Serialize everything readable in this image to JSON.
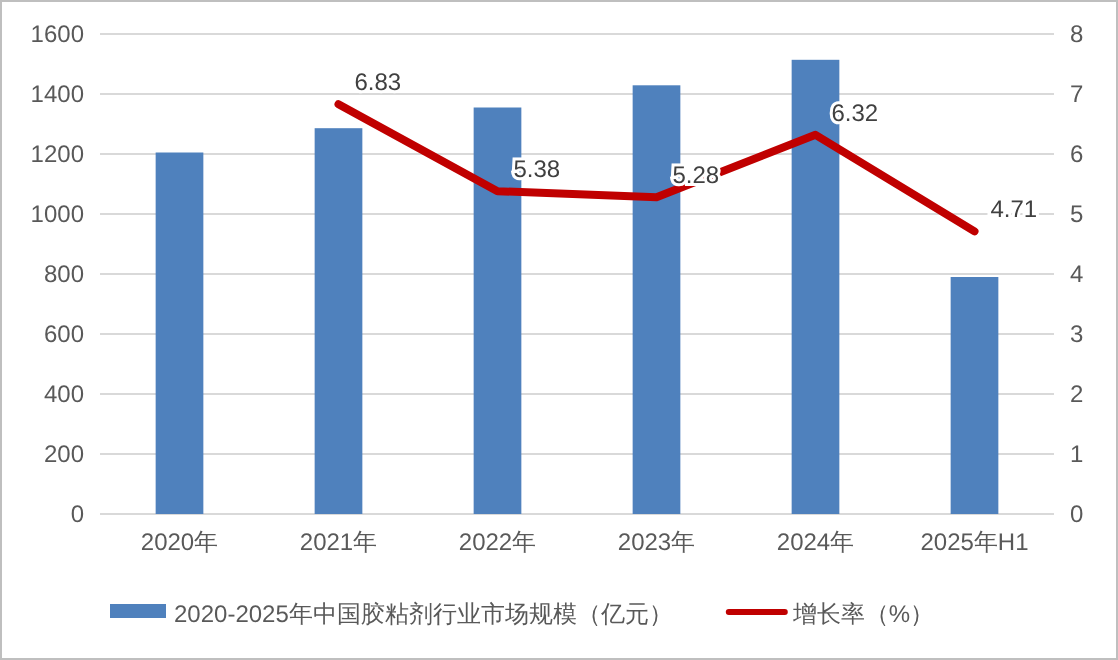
{
  "chart_data": {
    "type": "bar",
    "categories": [
      "2020年",
      "2021年",
      "2022年",
      "2023年",
      "2024年",
      "2025年H1"
    ],
    "series": [
      {
        "name": "2020-2025年中国胶粘剂行业市场规模（亿元）",
        "color": "#4f81bd",
        "values": [
          1205,
          1286,
          1355,
          1429,
          1514,
          790
        ]
      },
      {
        "name": "增长率（%）",
        "type": "line",
        "axis": "y2",
        "color": "#c00000",
        "values": [
          null,
          6.83,
          5.38,
          5.28,
          6.32,
          4.71
        ],
        "value_labels": [
          null,
          "6.83",
          "5.38",
          "5.28",
          "6.32",
          "4.71"
        ],
        "marker": "none"
      }
    ],
    "ylim": [
      0,
      1600
    ],
    "yticks": [
      0,
      200,
      400,
      600,
      800,
      1000,
      1200,
      1400,
      1600
    ],
    "y2lim": [
      0,
      8
    ],
    "y2ticks": [
      0,
      1,
      2,
      3,
      4,
      5,
      6,
      7,
      8
    ],
    "grid": "y",
    "legend": "bottom"
  }
}
